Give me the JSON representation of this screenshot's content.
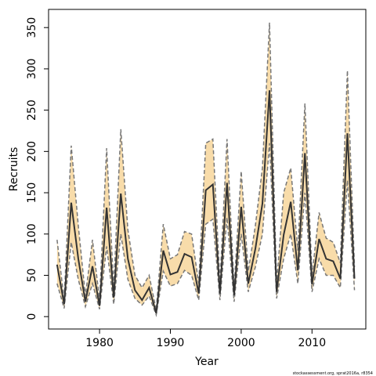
{
  "chart_data": {
    "type": "line",
    "xlabel": "Year",
    "ylabel": "Recruits",
    "footnote": "stockassessment.org, sprat2016a, r8354",
    "x": [
      1974,
      1975,
      1976,
      1977,
      1978,
      1979,
      1980,
      1981,
      1982,
      1983,
      1984,
      1985,
      1986,
      1987,
      1988,
      1989,
      1990,
      1991,
      1992,
      1993,
      1994,
      1995,
      1996,
      1997,
      1998,
      1999,
      2000,
      2001,
      2002,
      2003,
      2004,
      2005,
      2006,
      2007,
      2008,
      2009,
      2010,
      2011,
      2012,
      2013,
      2014,
      2015,
      2016
    ],
    "values": [
      63,
      15,
      138,
      70,
      18,
      61,
      13,
      132,
      23,
      149,
      70,
      32,
      20,
      35,
      4,
      80,
      51,
      54,
      76,
      72,
      28,
      153,
      160,
      28,
      162,
      26,
      133,
      40,
      82,
      137,
      274,
      30,
      99,
      139,
      56,
      198,
      39,
      94,
      70,
      67,
      46,
      222,
      46
    ],
    "upper": [
      93,
      20,
      207,
      110,
      25,
      93,
      20,
      204,
      35,
      227,
      105,
      50,
      35,
      50,
      8,
      112,
      70,
      75,
      103,
      100,
      40,
      210,
      215,
      40,
      215,
      35,
      176,
      55,
      110,
      180,
      356,
      40,
      150,
      180,
      80,
      258,
      50,
      126,
      95,
      90,
      65,
      298,
      60
    ],
    "lower": [
      40,
      10,
      90,
      45,
      12,
      40,
      9,
      85,
      15,
      100,
      45,
      22,
      14,
      25,
      2,
      55,
      37,
      40,
      56,
      50,
      20,
      112,
      118,
      20,
      120,
      18,
      100,
      30,
      60,
      100,
      210,
      22,
      70,
      100,
      40,
      150,
      30,
      70,
      50,
      50,
      35,
      165,
      32
    ],
    "color": "#333333",
    "band_color": "#f8dcaa",
    "bound_color": "#777777",
    "xlim": [
      1972.8,
      2017.6
    ],
    "ylim": [
      -15,
      372
    ],
    "xticks": [
      1980,
      1990,
      2000,
      2010
    ],
    "yticks": [
      0,
      50,
      100,
      150,
      200,
      250,
      300,
      350
    ]
  }
}
